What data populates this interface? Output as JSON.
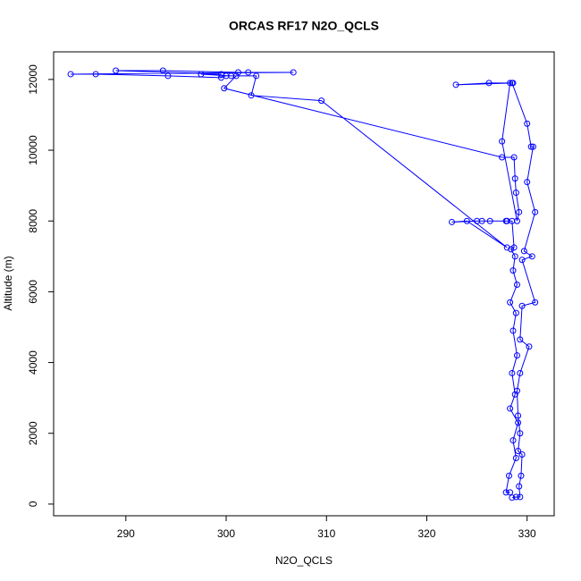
{
  "chart_data": {
    "type": "line",
    "title": "ORCAS RF17 N2O_QCLS",
    "x_label": "N2O_QCLS",
    "y_label": "Altitude (m)",
    "color": "#0000ff",
    "markers": "open-circle",
    "x": [
      328.3,
      327.9,
      328.2,
      328.9,
      328.6,
      329.1,
      328.3,
      328.8,
      328.5,
      329.0,
      328.6,
      328.9,
      328.3,
      329.0,
      328.6,
      328.8,
      328.4,
      328.7,
      328.5,
      328.0,
      327.9,
      326.3,
      325.5,
      325.0,
      322.5,
      324.0,
      328.0,
      309.5,
      302.5,
      303.0,
      300.5,
      297.5,
      299.5,
      289.0,
      293.7,
      301.2,
      302.2,
      306.7,
      284.5,
      287.0,
      294.2,
      299.5,
      300.0,
      301.0,
      299.8,
      327.5,
      328.7,
      328.8,
      328.9,
      329.2,
      329.0,
      327.5,
      328.3,
      328.6,
      326.2,
      322.9,
      328.5,
      330.0,
      330.4,
      330.6,
      330.0,
      330.8,
      329.7,
      330.5,
      329.5,
      330.8,
      329.5,
      329.3,
      330.2,
      329.3,
      329.0,
      329.1,
      329.3,
      329.1,
      329.5,
      329.4,
      329.2,
      329.3,
      328.9,
      328.5
    ],
    "values": [
      330,
      330,
      800,
      1300,
      1800,
      2300,
      2700,
      3100,
      3700,
      4200,
      4900,
      5400,
      5700,
      6200,
      6600,
      7000,
      7200,
      7250,
      8000,
      8000,
      8000,
      8000,
      8000,
      8000,
      7970,
      8000,
      7250,
      11400,
      11550,
      12100,
      12100,
      12150,
      12150,
      12250,
      12250,
      12200,
      12200,
      12200,
      12150,
      12150,
      12100,
      12050,
      12100,
      12100,
      11750,
      9800,
      9800,
      9200,
      8800,
      8250,
      8000,
      10250,
      11900,
      11900,
      11900,
      11850,
      11900,
      10750,
      10100,
      10100,
      9100,
      8250,
      7150,
      7000,
      6900,
      5700,
      5600,
      4650,
      4450,
      3700,
      3200,
      2500,
      2000,
      1500,
      1400,
      800,
      500,
      200,
      200,
      180
    ],
    "xlim": [
      282.8,
      332.7
    ],
    "ylim": [
      -330,
      12780
    ],
    "xticks": [
      290,
      300,
      310,
      320,
      330
    ],
    "yticks": [
      0,
      2000,
      4000,
      6000,
      8000,
      10000,
      12000
    ]
  }
}
